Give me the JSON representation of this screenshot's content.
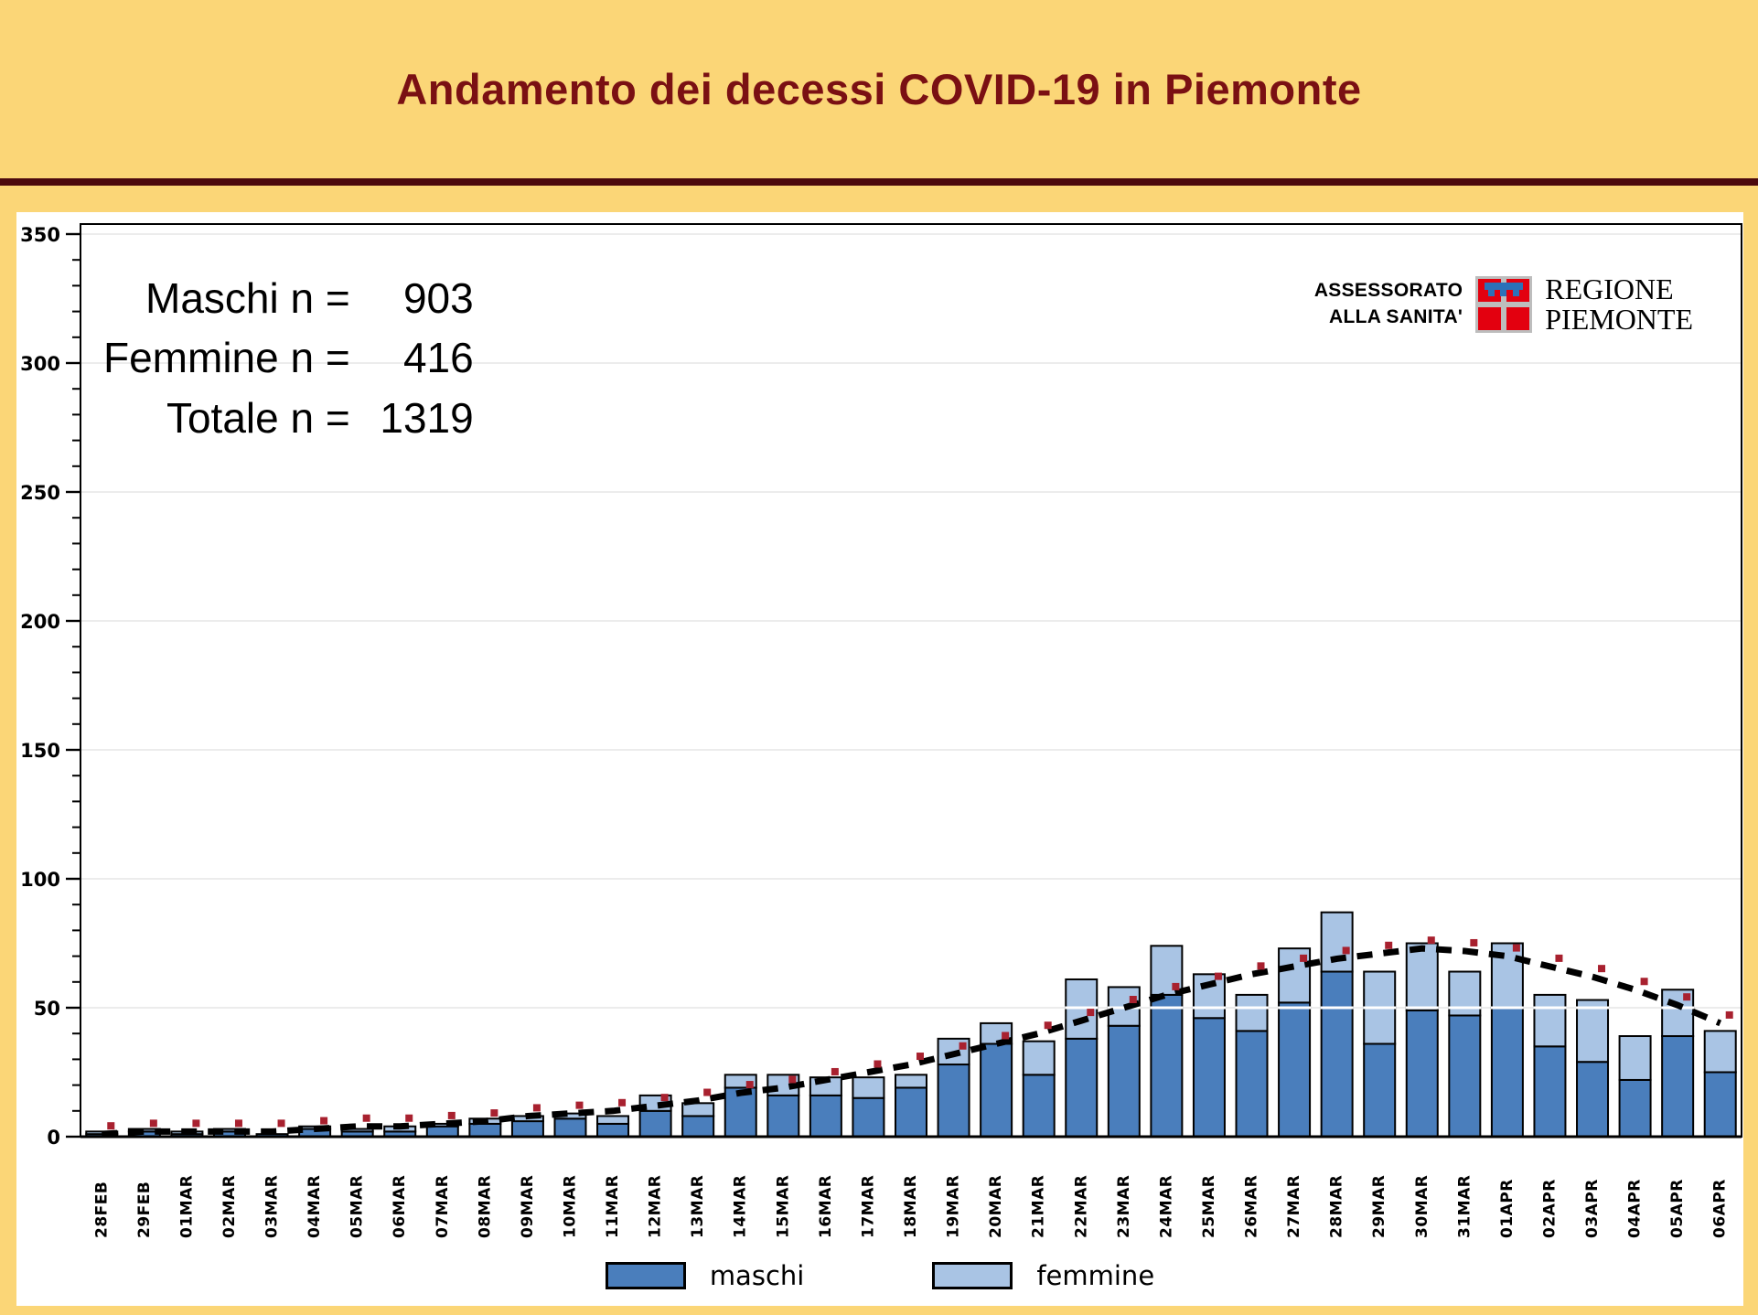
{
  "title": "Andamento dei decessi COVID-19 in Piemonte",
  "stats": {
    "rows": [
      {
        "label": "Maschi n =",
        "value": "903"
      },
      {
        "label": "Femmine n =",
        "value": "416"
      },
      {
        "label": "Totale n =",
        "value": "1319"
      }
    ]
  },
  "logo": {
    "line1": "ASSESSORATO",
    "line2": "ALLA SANITA'",
    "org_line1": "REGIONE",
    "org_line2": "PIEMONTE"
  },
  "legend": {
    "maschi": "maschi",
    "femmine": "femmine"
  },
  "colors": {
    "background": "#FBD677",
    "title": "#7A1013",
    "divider": "#4C090D",
    "maschi": "#4A7EBC",
    "femmine": "#A9C4E4",
    "bar_outline": "#000000",
    "trend": "#000000",
    "trend_marker": "#A8212F",
    "gridline": "#ECECEC",
    "grid50_overlay": "#FFFFFF"
  },
  "chart_data": {
    "type": "bar",
    "stacked": true,
    "title": "Andamento dei decessi COVID-19 in Piemonte",
    "xlabel": "",
    "ylabel": "",
    "ylim": [
      0,
      350
    ],
    "y_major_tick": 50,
    "y_minor_tick": 10,
    "grid": "horizontal-major",
    "legend_position": "bottom-center",
    "categories": [
      "28FEB",
      "29FEB",
      "01MAR",
      "02MAR",
      "03MAR",
      "04MAR",
      "05MAR",
      "06MAR",
      "07MAR",
      "08MAR",
      "09MAR",
      "10MAR",
      "11MAR",
      "12MAR",
      "13MAR",
      "14MAR",
      "15MAR",
      "16MAR",
      "17MAR",
      "18MAR",
      "19MAR",
      "20MAR",
      "21MAR",
      "22MAR",
      "23MAR",
      "24MAR",
      "25MAR",
      "26MAR",
      "27MAR",
      "28MAR",
      "29MAR",
      "30MAR",
      "31MAR",
      "01APR",
      "02APR",
      "03APR",
      "04APR",
      "05APR",
      "06APR"
    ],
    "series": [
      {
        "name": "maschi",
        "total": 903,
        "values": [
          1,
          2,
          1,
          2,
          1,
          3,
          2,
          2,
          4,
          5,
          6,
          7,
          5,
          10,
          8,
          19,
          16,
          16,
          15,
          19,
          28,
          36,
          24,
          38,
          43,
          55,
          46,
          41,
          52,
          64,
          36,
          49,
          47,
          50,
          35,
          29,
          22,
          39,
          25
        ]
      },
      {
        "name": "femmine",
        "total": 416,
        "values": [
          1,
          1,
          1,
          1,
          0,
          1,
          1,
          2,
          1,
          2,
          2,
          2,
          3,
          6,
          5,
          5,
          8,
          7,
          8,
          5,
          10,
          8,
          13,
          23,
          15,
          19,
          17,
          14,
          21,
          23,
          28,
          26,
          17,
          25,
          20,
          24,
          17,
          18,
          16
        ]
      }
    ],
    "trend": {
      "name": "trend-dashed",
      "style": "black-dashed-with-red-markers",
      "values": [
        1,
        2,
        2,
        2,
        2,
        3,
        4,
        4,
        5,
        6,
        8,
        9,
        10,
        12,
        14,
        17,
        19,
        22,
        25,
        28,
        32,
        36,
        40,
        45,
        50,
        55,
        59,
        63,
        66,
        69,
        71,
        73,
        72,
        70,
        66,
        62,
        57,
        51,
        44
      ]
    },
    "totals_annotation": {
      "maschi": 903,
      "femmine": 416,
      "totale": 1319
    }
  }
}
